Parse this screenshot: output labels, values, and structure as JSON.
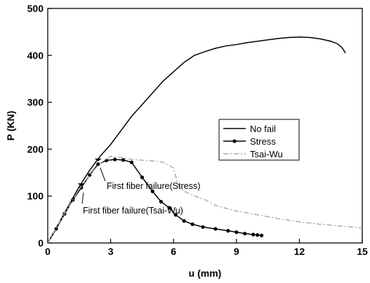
{
  "chart_data": {
    "type": "line",
    "xlabel": "u (mm)",
    "ylabel": "P (KN)",
    "xlim": [
      0,
      15
    ],
    "ylim": [
      0,
      500
    ],
    "xticks": [
      0,
      3,
      6,
      9,
      12,
      15
    ],
    "yticks": [
      0,
      100,
      200,
      300,
      400,
      500
    ],
    "grid": false,
    "legend_position": "center-right",
    "series": [
      {
        "name": "No fail",
        "color": "#000000",
        "style": "solid",
        "marker": "none",
        "x": [
          0,
          0.5,
          1,
          1.5,
          2,
          2.5,
          3,
          3.5,
          4,
          4.5,
          5,
          5.5,
          6,
          6.5,
          7,
          7.5,
          8,
          8.5,
          9,
          9.5,
          10,
          10.5,
          11,
          11.5,
          12,
          12.5,
          13,
          13.5,
          13.8,
          14,
          14.1,
          14.2
        ],
        "y": [
          0,
          40,
          80,
          120,
          155,
          185,
          210,
          240,
          270,
          295,
          320,
          345,
          365,
          385,
          400,
          408,
          415,
          420,
          423,
          427,
          430,
          433,
          436,
          438,
          439,
          438,
          435,
          430,
          425,
          418,
          412,
          405
        ]
      },
      {
        "name": "Stress",
        "color": "#000000",
        "style": "solid",
        "marker": "circle",
        "x": [
          0,
          0.4,
          0.8,
          1.2,
          1.6,
          2.0,
          2.4,
          2.8,
          3.2,
          3.6,
          4.0,
          4.5,
          5.0,
          5.4,
          5.8,
          6.1,
          6.5,
          6.9,
          7.4,
          8.0,
          8.6,
          9.0,
          9.4,
          9.8,
          10.0,
          10.2
        ],
        "y": [
          0,
          30,
          62,
          92,
          118,
          145,
          168,
          176,
          178,
          177,
          172,
          140,
          110,
          88,
          75,
          60,
          47,
          40,
          34,
          30,
          26,
          23,
          20,
          18,
          17,
          16
        ]
      },
      {
        "name": "Tsai-Wu",
        "color": "#a8a8a8",
        "style": "dash-dot",
        "marker": "none",
        "x": [
          0,
          0.5,
          1,
          1.5,
          2,
          2.5,
          3,
          3.5,
          4,
          5,
          5.5,
          6,
          6.2,
          6.5,
          7,
          7.5,
          8,
          9,
          10,
          11,
          12,
          13,
          14,
          15
        ],
        "y": [
          0,
          40,
          78,
          115,
          145,
          170,
          185,
          182,
          178,
          175,
          172,
          160,
          125,
          110,
          100,
          92,
          80,
          68,
          60,
          52,
          45,
          40,
          36,
          32
        ]
      }
    ],
    "annotations": [
      {
        "text": "First fiber failure(Stress)",
        "point": [
          2.4,
          168
        ]
      },
      {
        "text": "First fiber failure(Tsai-Wu)",
        "point": [
          1.6,
          115
        ]
      }
    ]
  }
}
